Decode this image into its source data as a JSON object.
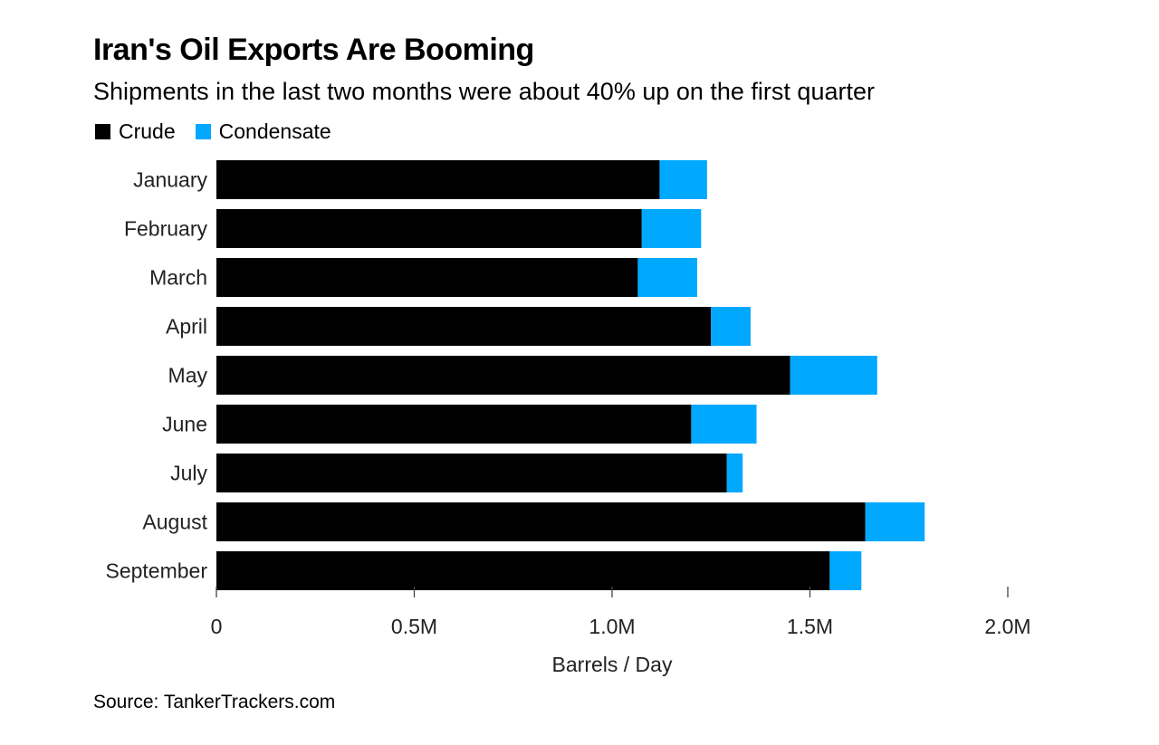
{
  "header": {
    "title": "Iran's Oil Exports Are Booming",
    "subtitle": "Shipments in the last two months were about 40% up on the first quarter"
  },
  "legend": {
    "items": [
      {
        "label": "Crude",
        "color": "#000000"
      },
      {
        "label": "Condensate",
        "color": "#00a8ff"
      }
    ]
  },
  "source": "Source: TankerTrackers.com",
  "chart_data": {
    "type": "bar",
    "orientation": "horizontal",
    "stacked": true,
    "title": "Iran's Oil Exports Are Booming",
    "subtitle": "Shipments in the last two months were about 40% up on the first quarter",
    "categories": [
      "January",
      "February",
      "March",
      "April",
      "May",
      "June",
      "July",
      "August",
      "September"
    ],
    "series": [
      {
        "name": "Crude",
        "color": "#000000",
        "values": [
          1120000,
          1075000,
          1065000,
          1250000,
          1450000,
          1200000,
          1290000,
          1640000,
          1550000
        ]
      },
      {
        "name": "Condensate",
        "color": "#00a8ff",
        "values": [
          120000,
          150000,
          150000,
          100000,
          220000,
          165000,
          40000,
          150000,
          80000
        ]
      }
    ],
    "xlabel": "Barrels / Day",
    "ylabel": "",
    "xlim": [
      0,
      2000000
    ],
    "xticks": [
      0,
      500000,
      1000000,
      1500000,
      2000000
    ],
    "xtick_labels": [
      "0",
      "0.5M",
      "1.0M",
      "1.5M",
      "2.0M"
    ],
    "legend_position": "top-left",
    "grid": false
  }
}
